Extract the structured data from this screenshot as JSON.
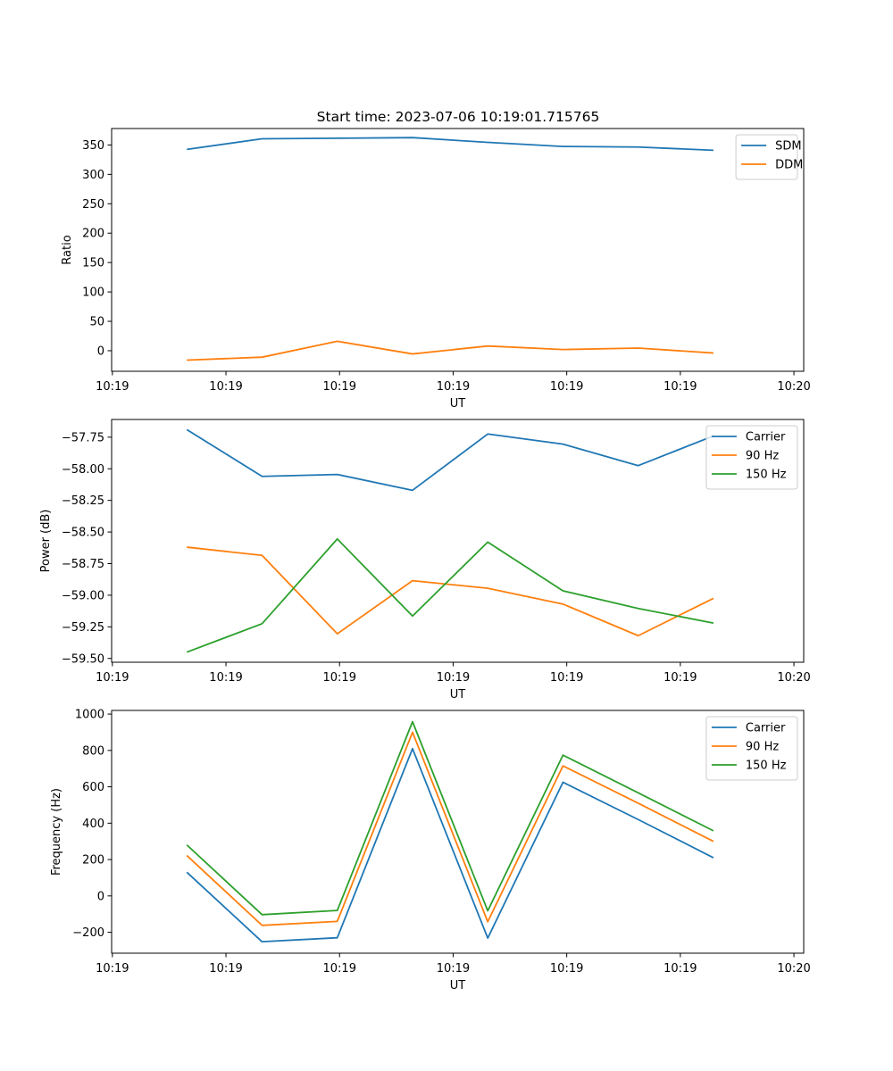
{
  "figure_title": "Start time: 2023-07-06 10:19:01.715765",
  "chart_data": [
    {
      "type": "line",
      "title": "Start time: 2023-07-06 10:19:01.715765",
      "xlabel": "UT",
      "ylabel": "Ratio",
      "x": [
        0.5,
        1,
        1.5,
        2,
        2.5,
        3,
        3.5,
        4
      ],
      "xlim": [
        0,
        4.6
      ],
      "xticks": [
        0.005,
        0.76,
        1.515,
        2.27,
        3.025,
        3.78,
        4.535
      ],
      "xtick_labels": [
        "10:19",
        "10:19",
        "10:19",
        "10:19",
        "10:19",
        "10:19",
        "10:20"
      ],
      "ylim": [
        -35,
        378
      ],
      "yticks": [
        0,
        50,
        100,
        150,
        200,
        250,
        300,
        350
      ],
      "ytick_labels": [
        "0",
        "50",
        "100",
        "150",
        "200",
        "250",
        "300",
        "350"
      ],
      "legend_position": "top-right",
      "series": [
        {
          "name": "SDM",
          "color": "#1f77b4",
          "values": [
            342.5,
            360.5,
            361.5,
            362.5,
            354.5,
            347.5,
            346.5,
            341
          ]
        },
        {
          "name": "DDM",
          "color": "#ff7f0e",
          "values": [
            -16,
            -11,
            16,
            -5.5,
            8,
            2,
            4.5,
            -4
          ]
        }
      ]
    },
    {
      "type": "line",
      "title": "",
      "xlabel": "UT",
      "ylabel": "Power (dB)",
      "x": [
        0.5,
        1,
        1.5,
        2,
        2.5,
        3,
        3.5,
        4
      ],
      "xlim": [
        0,
        4.6
      ],
      "xticks": [
        0.005,
        0.76,
        1.515,
        2.27,
        3.025,
        3.78,
        4.535
      ],
      "xtick_labels": [
        "10:19",
        "10:19",
        "10:19",
        "10:19",
        "10:19",
        "10:19",
        "10:20"
      ],
      "ylim": [
        -59.53,
        -57.61
      ],
      "yticks": [
        -57.75,
        -58.0,
        -58.25,
        -58.5,
        -58.75,
        -59.0,
        -59.25,
        -59.5
      ],
      "ytick_labels": [
        "−57.75",
        "−58.00",
        "−58.25",
        "−58.50",
        "−58.75",
        "−59.00",
        "−59.25",
        "−59.50"
      ],
      "legend_position": "top-right",
      "series": [
        {
          "name": "Carrier",
          "color": "#1f77b4",
          "values": [
            -57.69,
            -58.06,
            -58.045,
            -58.17,
            -57.725,
            -57.805,
            -57.975,
            -57.74
          ]
        },
        {
          "name": "90 Hz",
          "color": "#ff7f0e",
          "values": [
            -58.62,
            -58.685,
            -59.305,
            -58.885,
            -58.945,
            -59.07,
            -59.32,
            -59.025
          ]
        },
        {
          "name": "150 Hz",
          "color": "#2ca02c",
          "values": [
            -59.45,
            -59.225,
            -58.555,
            -59.165,
            -58.58,
            -58.965,
            -59.105,
            -59.22
          ]
        }
      ]
    },
    {
      "type": "line",
      "title": "",
      "xlabel": "UT",
      "ylabel": "Frequency (Hz)",
      "x": [
        0.5,
        1,
        1.5,
        2,
        2.5,
        3,
        3.5,
        4
      ],
      "xlim": [
        0,
        4.6
      ],
      "xticks": [
        0.005,
        0.76,
        1.515,
        2.27,
        3.025,
        3.78,
        4.535
      ],
      "xtick_labels": [
        "10:19",
        "10:19",
        "10:19",
        "10:19",
        "10:19",
        "10:19",
        "10:20"
      ],
      "ylim": [
        -315,
        1020
      ],
      "yticks": [
        1000,
        800,
        600,
        400,
        200,
        0,
        -200
      ],
      "ytick_labels": [
        "1000",
        "800",
        "600",
        "400",
        "200",
        "0",
        "−200"
      ],
      "legend_position": "top-right",
      "series": [
        {
          "name": "Carrier",
          "color": "#1f77b4",
          "values": [
            130,
            -252,
            -230,
            810,
            -232,
            625,
            420,
            210
          ]
        },
        {
          "name": "90 Hz",
          "color": "#ff7f0e",
          "values": [
            222,
            -162,
            -140,
            900,
            -142,
            715,
            510,
            300
          ]
        },
        {
          "name": "150 Hz",
          "color": "#2ca02c",
          "values": [
            280,
            -103,
            -80,
            958,
            -82,
            774,
            567,
            358
          ]
        }
      ]
    }
  ]
}
